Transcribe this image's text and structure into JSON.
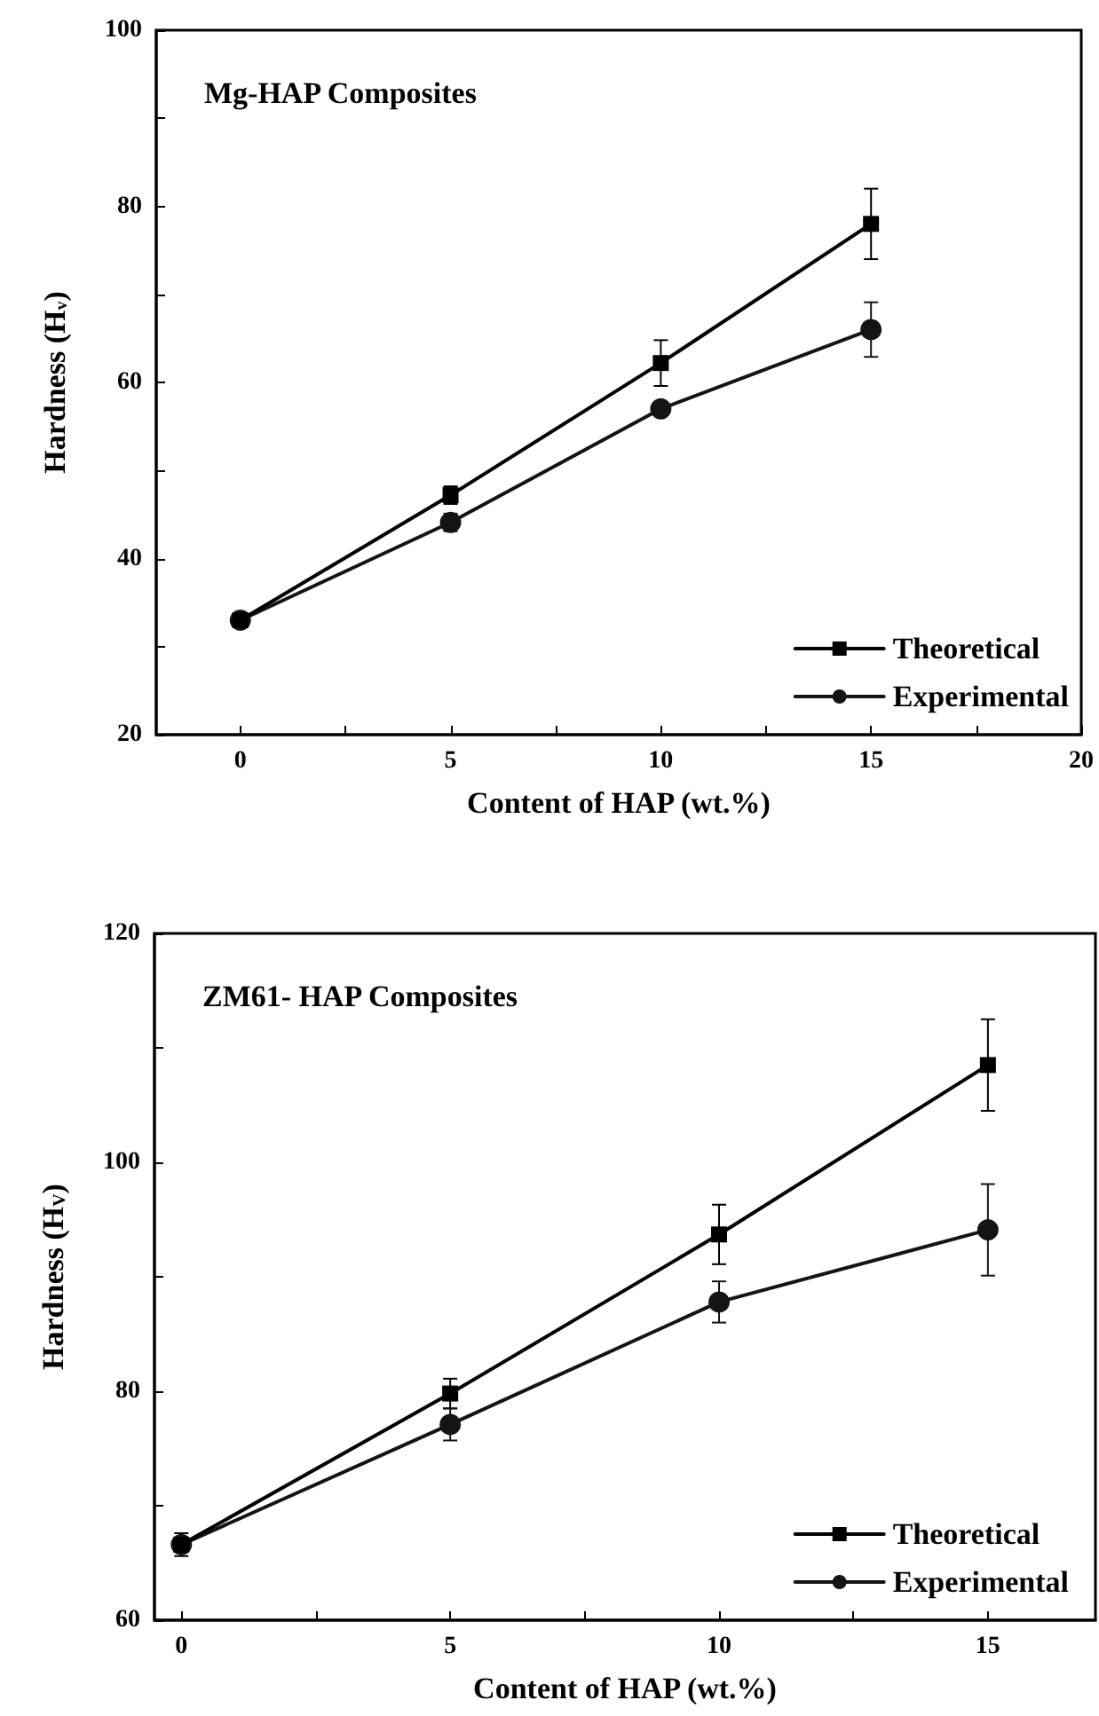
{
  "chart_data": [
    {
      "type": "line",
      "title": "Mg-HAP Composites",
      "xlabel": "Content of HAP (wt.%)",
      "ylabel": "Hardness (H$_{v}$)",
      "x": [
        0,
        5,
        10,
        15
      ],
      "series": [
        {
          "name": "Theoretical",
          "color": "#000000",
          "marker": "square",
          "values": [
            33,
            47.2,
            62.2,
            78
          ],
          "errors": [
            null,
            1,
            2.6,
            4
          ]
        },
        {
          "name": "Experimental",
          "color": "#141414",
          "marker": "circle",
          "values": [
            33,
            44.1,
            57,
            66
          ],
          "errors": [
            null,
            1,
            0.6,
            3.1
          ]
        }
      ],
      "xlim": [
        -2,
        20
      ],
      "xticks": [
        0,
        {
          "value": 2.5,
          "label": null
        },
        5,
        {
          "value": 7.5,
          "label": null
        },
        10,
        {
          "value": 12.5,
          "label": null
        },
        15,
        {
          "value": 17.5,
          "label": null
        },
        20
      ],
      "ylim": [
        20,
        100
      ],
      "yticks": [
        20,
        {
          "value": 30,
          "label": null
        },
        40,
        {
          "value": 50,
          "label": null
        },
        60,
        {
          "value": 70,
          "label": null
        },
        80,
        {
          "value": 90,
          "label": null
        },
        100
      ],
      "grid": false,
      "legend": "bottom right",
      "line_style": "solid"
    },
    {
      "type": "line",
      "title": "ZM61- HAP Composites",
      "xlabel": "Content of HAP (wt.%)",
      "ylabel": "Hardness (H$_{V}$)",
      "x": [
        0,
        5,
        10,
        15
      ],
      "series": [
        {
          "name": "Theoretical",
          "color": "#000000",
          "marker": "square",
          "values": [
            66.6,
            79.8,
            93.7,
            108.5
          ],
          "errors": [
            1,
            1.3,
            2.6,
            4
          ]
        },
        {
          "name": "Experimental",
          "color": "#141414",
          "marker": "circle",
          "values": [
            66.6,
            77.1,
            87.8,
            94.1
          ],
          "errors": [
            null,
            1.4,
            1.8,
            4
          ]
        }
      ],
      "xlim": [
        -0.5,
        17
      ],
      "xticks": [
        0,
        {
          "value": 2.5,
          "label": null
        },
        5,
        {
          "value": 7.5,
          "label": null
        },
        10,
        {
          "value": 12.5,
          "label": null
        },
        15
      ],
      "ylim": [
        60,
        120
      ],
      "yticks": [
        60,
        {
          "value": 70,
          "label": null
        },
        80,
        {
          "value": 90,
          "label": null
        },
        100,
        {
          "value": 110,
          "label": null
        },
        120
      ],
      "grid": false,
      "legend": "bottom right",
      "line_style": "solid"
    }
  ]
}
